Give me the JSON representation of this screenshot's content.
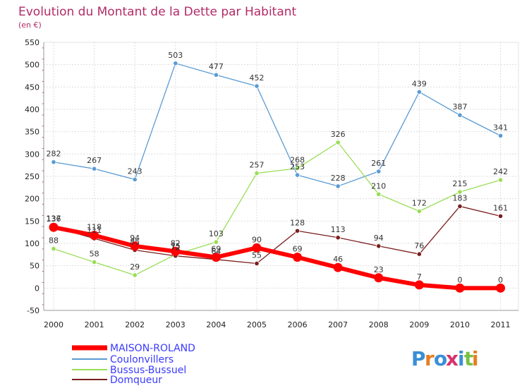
{
  "chart_data": {
    "type": "line",
    "title": "Evolution du Montant de la Dette par Habitant",
    "subtitle": "(en €)",
    "xlabel": "",
    "ylabel": "",
    "categories": [
      "2000",
      "2001",
      "2002",
      "2003",
      "2004",
      "2005",
      "2006",
      "2007",
      "2008",
      "2009",
      "2010",
      "2011"
    ],
    "ylim": [
      -50,
      550
    ],
    "yticks": [
      -50,
      0,
      50,
      100,
      150,
      200,
      250,
      300,
      350,
      400,
      450,
      500,
      550
    ],
    "grid": true,
    "legend_position": "bottom-left",
    "series": [
      {
        "name": "MAISON-ROLAND",
        "color": "#ff0000",
        "values": [
          136,
          118,
          94,
          82,
          69,
          90,
          69,
          46,
          23,
          7,
          0,
          0
        ]
      },
      {
        "name": "Coulonvillers",
        "color": "#5a9bd4",
        "values": [
          282,
          267,
          243,
          503,
          477,
          452,
          253,
          228,
          261,
          439,
          387,
          341
        ]
      },
      {
        "name": "Bussus-Bussuel",
        "color": "#99dd55",
        "values": [
          88,
          58,
          29,
          75,
          103,
          257,
          268,
          326,
          210,
          172,
          215,
          242
        ]
      },
      {
        "name": "Domqueur",
        "color": "#7a1e1e",
        "values": [
          137,
          111,
          85,
          72,
          64,
          55,
          128,
          113,
          94,
          76,
          183,
          161
        ]
      }
    ]
  },
  "logo": {
    "text": "Proxiti"
  }
}
